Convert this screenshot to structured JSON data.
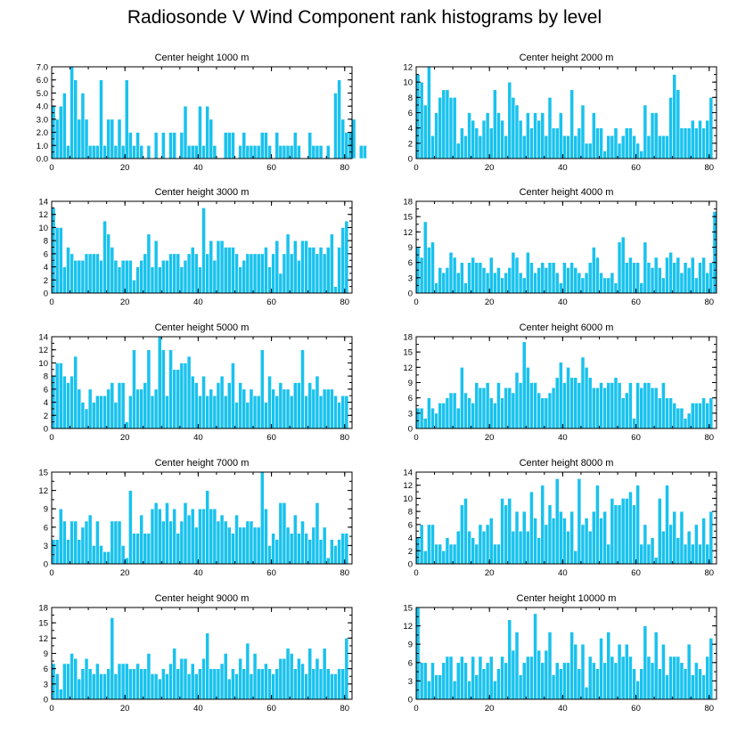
{
  "page_title": "Radiosonde V Wind Component rank histograms by level",
  "chart_data": [
    {
      "type": "bar",
      "title": "Center height 1000 m",
      "xlabel": "",
      "ylabel": "",
      "xlim": [
        0,
        82
      ],
      "ylim": [
        0,
        7
      ],
      "xticks": [
        0,
        20,
        40,
        60,
        80
      ],
      "yticks": [
        "0.0",
        "1.0",
        "2.0",
        "3.0",
        "4.0",
        "5.0",
        "6.0",
        "7.0"
      ],
      "ytick_values": [
        0,
        1,
        2,
        3,
        4,
        5,
        6,
        7
      ],
      "values": [
        4,
        3,
        4,
        5,
        1,
        7,
        6,
        3,
        5,
        3,
        1,
        1,
        1,
        6,
        1,
        3,
        3,
        1,
        3,
        1,
        6,
        2,
        1,
        2,
        1,
        0,
        1,
        0,
        2,
        0,
        2,
        0,
        2,
        2,
        0,
        2,
        4,
        1,
        1,
        1,
        4,
        1,
        4,
        3,
        1,
        0,
        0,
        2,
        2,
        2,
        0,
        1,
        2,
        1,
        1,
        1,
        1,
        2,
        2,
        1,
        0,
        2,
        1,
        1,
        1,
        1,
        2,
        1,
        0,
        0,
        2,
        1,
        1,
        1,
        0,
        1,
        0,
        5,
        6,
        3,
        2,
        2,
        3,
        0,
        1,
        1
      ]
    },
    {
      "type": "bar",
      "title": "Center height 2000 m",
      "xlabel": "",
      "ylabel": "",
      "xlim": [
        0,
        82
      ],
      "ylim": [
        0,
        12
      ],
      "xticks": [
        0,
        20,
        40,
        60,
        80
      ],
      "yticks": [
        "0",
        "2",
        "4",
        "6",
        "8",
        "10",
        "12"
      ],
      "ytick_values": [
        0,
        2,
        4,
        6,
        8,
        10,
        12
      ],
      "values": [
        11,
        10,
        7,
        12,
        3,
        6,
        8,
        9,
        9,
        8,
        8,
        2,
        4,
        3,
        6,
        5,
        4,
        3,
        5,
        6,
        4,
        9,
        6,
        5,
        3,
        10,
        8,
        7,
        5,
        3,
        6,
        4,
        6,
        5,
        6,
        3,
        8,
        4,
        4,
        6,
        3,
        3,
        9,
        3,
        4,
        7,
        2,
        2,
        6,
        4,
        4,
        1,
        3,
        3,
        4,
        2,
        3,
        4,
        4,
        3,
        2,
        1,
        7,
        3,
        6,
        6,
        3,
        3,
        3,
        8,
        11,
        9,
        4,
        4,
        4,
        5,
        4,
        5,
        4,
        5,
        8
      ]
    },
    {
      "type": "bar",
      "title": "Center height 3000 m",
      "xlabel": "",
      "ylabel": "",
      "xlim": [
        0,
        82
      ],
      "ylim": [
        0,
        14
      ],
      "xticks": [
        0,
        20,
        40,
        60,
        80
      ],
      "yticks": [
        "0",
        "2",
        "4",
        "6",
        "8",
        "10",
        "12",
        "14"
      ],
      "ytick_values": [
        0,
        2,
        4,
        6,
        8,
        10,
        12,
        14
      ],
      "values": [
        13,
        10,
        10,
        4,
        7,
        6,
        5,
        5,
        5,
        6,
        6,
        6,
        6,
        5,
        11,
        9,
        7,
        5,
        4,
        5,
        5,
        5,
        2,
        4,
        5,
        6,
        9,
        4,
        8,
        4,
        5,
        5,
        6,
        6,
        6,
        4,
        5,
        6,
        7,
        6,
        4,
        13,
        6,
        8,
        5,
        8,
        8,
        7,
        7,
        7,
        6,
        4,
        5,
        6,
        6,
        6,
        6,
        6,
        7,
        4,
        6,
        8,
        3,
        6,
        9,
        6,
        8,
        5,
        8,
        8,
        7,
        7,
        6,
        7,
        6,
        7,
        9,
        1,
        7,
        10,
        11
      ]
    },
    {
      "type": "bar",
      "title": "Center height 4000 m",
      "xlabel": "",
      "ylabel": "",
      "xlim": [
        0,
        82
      ],
      "ylim": [
        0,
        18
      ],
      "xticks": [
        0,
        20,
        40,
        60,
        80
      ],
      "yticks": [
        "0",
        "3",
        "6",
        "9",
        "12",
        "15",
        "18"
      ],
      "ytick_values": [
        0,
        3,
        6,
        9,
        12,
        15,
        18
      ],
      "values": [
        9,
        7,
        14,
        9,
        10,
        2,
        5,
        4,
        5,
        8,
        7,
        4,
        6,
        2,
        6,
        7,
        6,
        6,
        5,
        4,
        7,
        4,
        5,
        3,
        4,
        5,
        8,
        7,
        4,
        3,
        8,
        6,
        4,
        5,
        6,
        5,
        6,
        6,
        4,
        2,
        6,
        5,
        6,
        5,
        4,
        3,
        4,
        6,
        9,
        7,
        4,
        3,
        3,
        4,
        2,
        10,
        11,
        6,
        7,
        6,
        6,
        2,
        10,
        6,
        5,
        7,
        5,
        3,
        7,
        8,
        6,
        7,
        4,
        6,
        5,
        7,
        3,
        6,
        7,
        4,
        6,
        16
      ]
    },
    {
      "type": "bar",
      "title": "Center height 5000 m",
      "xlabel": "",
      "ylabel": "",
      "xlim": [
        0,
        82
      ],
      "ylim": [
        0,
        14
      ],
      "xticks": [
        0,
        20,
        40,
        60,
        80
      ],
      "yticks": [
        "0",
        "2",
        "4",
        "6",
        "8",
        "10",
        "12",
        "14"
      ],
      "ytick_values": [
        0,
        2,
        4,
        6,
        8,
        10,
        12,
        14
      ],
      "values": [
        8,
        10,
        10,
        8,
        7,
        8,
        11,
        6,
        4,
        3,
        6,
        4,
        5,
        5,
        5,
        6,
        7,
        4,
        7,
        7,
        1,
        5,
        12,
        6,
        6,
        7,
        12,
        5,
        6,
        14,
        12,
        5,
        12,
        9,
        9,
        10,
        10,
        11,
        8,
        7,
        5,
        8,
        5,
        6,
        5,
        7,
        8,
        5,
        7,
        10,
        4,
        7,
        6,
        4,
        6,
        5,
        5,
        12,
        4,
        8,
        6,
        5,
        7,
        6,
        6,
        5,
        7,
        7,
        12,
        5,
        7,
        6,
        8,
        5,
        6,
        6,
        6,
        5,
        4,
        5,
        5
      ]
    },
    {
      "type": "bar",
      "title": "Center height 6000 m",
      "xlabel": "",
      "ylabel": "",
      "xlim": [
        0,
        82
      ],
      "ylim": [
        0,
        18
      ],
      "xticks": [
        0,
        20,
        40,
        60,
        80
      ],
      "yticks": [
        "0",
        "3",
        "6",
        "9",
        "12",
        "15",
        "18"
      ],
      "ytick_values": [
        0,
        3,
        6,
        9,
        12,
        15,
        18
      ],
      "values": [
        4,
        4,
        2,
        6,
        4,
        3,
        5,
        5,
        6,
        7,
        7,
        4,
        12,
        7,
        6,
        5,
        9,
        8,
        8,
        9,
        6,
        5,
        9,
        6,
        8,
        8,
        7,
        11,
        9,
        17,
        12,
        9,
        9,
        7,
        6,
        6,
        7,
        8,
        10,
        13,
        9,
        12,
        10,
        10,
        9,
        14,
        12,
        10,
        8,
        8,
        9,
        8,
        9,
        9,
        10,
        9,
        6,
        7,
        9,
        2,
        9,
        8,
        9,
        9,
        8,
        8,
        6,
        9,
        6,
        6,
        5,
        4,
        4,
        2,
        3,
        5,
        5,
        5,
        6,
        5,
        6
      ]
    },
    {
      "type": "bar",
      "title": "Center height 7000 m",
      "xlabel": "",
      "ylabel": "",
      "xlim": [
        0,
        82
      ],
      "ylim": [
        0,
        15
      ],
      "xticks": [
        0,
        20,
        40,
        60,
        80
      ],
      "yticks": [
        "0",
        "3",
        "6",
        "9",
        "12",
        "15"
      ],
      "ytick_values": [
        0,
        3,
        6,
        9,
        12,
        15
      ],
      "values": [
        4,
        4,
        9,
        7,
        4,
        7,
        7,
        4,
        6,
        7,
        8,
        3,
        7,
        3,
        2,
        2,
        7,
        7,
        7,
        3,
        1,
        12,
        5,
        5,
        8,
        5,
        5,
        9,
        10,
        9,
        7,
        10,
        7,
        9,
        5,
        7,
        10,
        8,
        9,
        6,
        9,
        9,
        12,
        9,
        9,
        7,
        8,
        7,
        6,
        5,
        8,
        6,
        6,
        7,
        7,
        6,
        6,
        15,
        9,
        3,
        5,
        4,
        10,
        10,
        6,
        5,
        8,
        5,
        7,
        5,
        4,
        6,
        10,
        4,
        6,
        1,
        4,
        3,
        4,
        5,
        5
      ]
    },
    {
      "type": "bar",
      "title": "Center height 8000 m",
      "xlabel": "",
      "ylabel": "",
      "xlim": [
        0,
        82
      ],
      "ylim": [
        0,
        14
      ],
      "xticks": [
        0,
        20,
        40,
        60,
        80
      ],
      "yticks": [
        "0",
        "2",
        "4",
        "6",
        "8",
        "10",
        "12",
        "14"
      ],
      "ytick_values": [
        0,
        2,
        4,
        6,
        8,
        10,
        12,
        14
      ],
      "values": [
        4,
        6,
        2,
        6,
        6,
        3,
        3,
        2,
        4,
        3,
        3,
        5,
        9,
        10,
        5,
        4,
        3,
        6,
        5,
        6,
        7,
        3,
        3,
        10,
        9,
        10,
        5,
        8,
        5,
        8,
        5,
        11,
        7,
        4,
        12,
        6,
        9,
        7,
        13,
        8,
        7,
        5,
        8,
        2,
        13,
        6,
        7,
        5,
        8,
        12,
        7,
        8,
        3,
        10,
        9,
        9,
        10,
        10,
        11,
        9,
        12,
        3,
        6,
        3,
        4,
        1,
        10,
        5,
        12,
        6,
        8,
        4,
        8,
        3,
        5,
        3,
        6,
        3,
        7,
        3,
        8
      ]
    },
    {
      "type": "bar",
      "title": "Center height 9000 m",
      "xlabel": "",
      "ylabel": "",
      "xlim": [
        0,
        82
      ],
      "ylim": [
        0,
        18
      ],
      "xticks": [
        0,
        20,
        40,
        60,
        80
      ],
      "yticks": [
        "0",
        "3",
        "6",
        "9",
        "12",
        "15",
        "18"
      ],
      "ytick_values": [
        0,
        3,
        6,
        9,
        12,
        15,
        18
      ],
      "values": [
        7,
        5,
        2,
        7,
        7,
        9,
        8,
        4,
        6,
        8,
        6,
        5,
        7,
        5,
        5,
        6,
        16,
        5,
        7,
        7,
        7,
        6,
        6,
        7,
        6,
        6,
        9,
        5,
        5,
        4,
        6,
        5,
        7,
        10,
        6,
        8,
        8,
        5,
        7,
        5,
        6,
        8,
        13,
        6,
        6,
        6,
        7,
        9,
        4,
        6,
        5,
        8,
        6,
        11,
        5,
        9,
        6,
        6,
        7,
        6,
        5,
        6,
        8,
        8,
        10,
        9,
        6,
        8,
        7,
        5,
        10,
        6,
        8,
        6,
        10,
        6,
        5,
        5,
        6,
        6,
        12
      ]
    },
    {
      "type": "bar",
      "title": "Center height 10000 m",
      "xlabel": "",
      "ylabel": "",
      "xlim": [
        0,
        82
      ],
      "ylim": [
        0,
        15
      ],
      "xticks": [
        0,
        20,
        40,
        60,
        80
      ],
      "yticks": [
        "0",
        "3",
        "6",
        "9",
        "12",
        "15"
      ],
      "ytick_values": [
        0,
        3,
        6,
        9,
        12,
        15
      ],
      "values": [
        15,
        6,
        6,
        3,
        6,
        4,
        4,
        6,
        7,
        7,
        3,
        6,
        7,
        6,
        3,
        7,
        4,
        7,
        5,
        6,
        7,
        3,
        5,
        7,
        6,
        13,
        8,
        11,
        4,
        6,
        7,
        7,
        14,
        8,
        6,
        8,
        11,
        4,
        6,
        5,
        6,
        6,
        11,
        9,
        5,
        9,
        2,
        7,
        6,
        5,
        10,
        6,
        11,
        7,
        6,
        9,
        7,
        9,
        7,
        5,
        3,
        5,
        12,
        7,
        6,
        11,
        5,
        9,
        4,
        7,
        7,
        7,
        6,
        5,
        9,
        4,
        6,
        5,
        4,
        7,
        10
      ]
    }
  ]
}
